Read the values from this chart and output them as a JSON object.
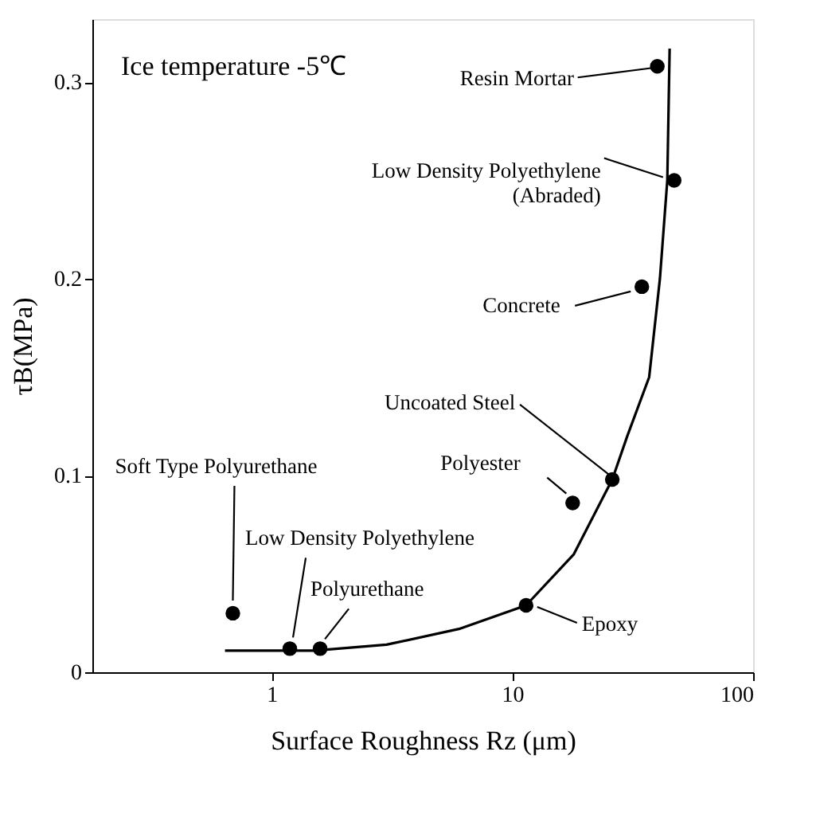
{
  "chart_data": {
    "type": "scatter",
    "xlabel": "Surface Roughness Rz (μm)",
    "ylabel": "τB(MPa)",
    "log": "x",
    "xlim": [
      0.18,
      100
    ],
    "xticks": [
      1,
      10,
      100
    ],
    "ylim": [
      0,
      0.332
    ],
    "yticks": [
      0,
      0.1,
      0.2,
      0.3
    ],
    "grid": false,
    "marker": "circle",
    "series": [
      {
        "color": "#000000",
        "x": [
          0.69,
          1.19,
          1.59,
          11.4,
          17.8,
          26,
          34.5,
          47,
          40
        ],
        "values": [
          0.03,
          0.012,
          0.012,
          0.034,
          0.086,
          0.098,
          0.196,
          0.25,
          0.308
        ]
      },
      {
        "type": "line",
        "color": "#000000",
        "marker": "none",
        "x": [
          0.64,
          1.5,
          3,
          6,
          11.4,
          18,
          26,
          30,
          37,
          41,
          44,
          45
        ],
        "values": [
          0.011,
          0.011,
          0.014,
          0.022,
          0.034,
          0.06,
          0.098,
          0.12,
          0.15,
          0.2,
          0.25,
          0.317
        ]
      }
    ],
    "annotations": [
      "Ice temperature  -5℃",
      {
        "text": "Soft Type Polyurethane",
        "x": 0.69,
        "y": 0.03
      },
      {
        "text": "Low Density Polyethylene",
        "x": 1.19,
        "y": 0.012
      },
      {
        "text": "Polyurethane",
        "x": 1.59,
        "y": 0.012
      },
      {
        "text": "Epoxy",
        "x": 11.4,
        "y": 0.034
      },
      {
        "text": "Polyester",
        "x": 17.8,
        "y": 0.086
      },
      {
        "text": "Uncoated Steel",
        "x": 26,
        "y": 0.098
      },
      {
        "text": "Concrete",
        "x": 34.5,
        "y": 0.196
      },
      {
        "text": "Low Density Polyethylene\n(Abraded)",
        "x": 47,
        "y": 0.25
      },
      {
        "text": "Resin Mortar",
        "x": 40,
        "y": 0.308
      }
    ]
  }
}
